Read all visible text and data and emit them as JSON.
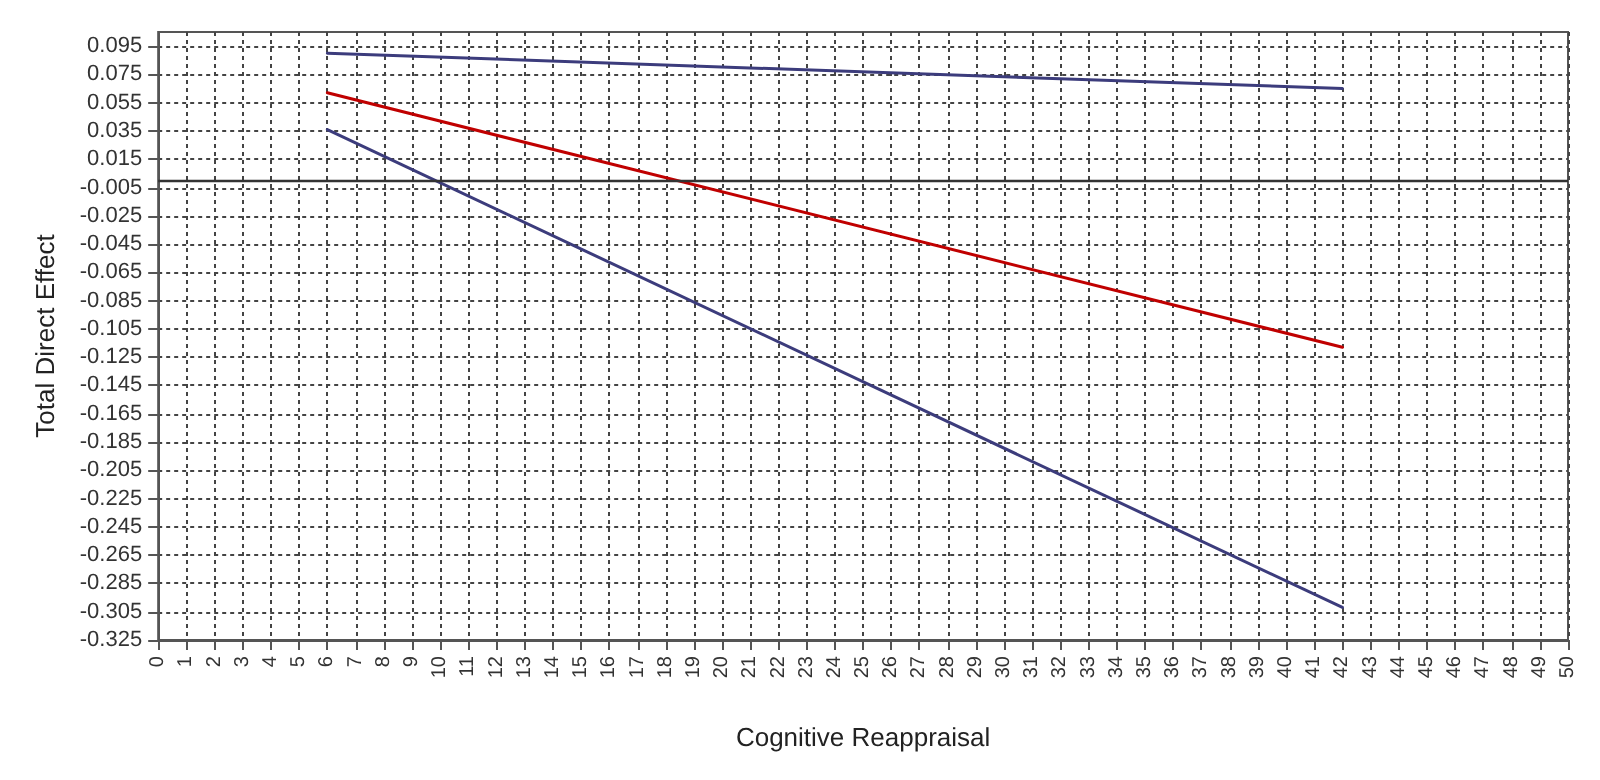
{
  "chart_data": {
    "type": "line",
    "xlabel": "Cognitive Reappraisal",
    "ylabel": "Total Direct Effect",
    "x": [
      6,
      42
    ],
    "series": [
      {
        "color": "#3c3c7c",
        "values": [
          0.09,
          0.065
        ]
      },
      {
        "color": "#c00000",
        "values": [
          0.062,
          -0.118
        ]
      },
      {
        "color": "#3c3c7c",
        "values": [
          0.036,
          -0.302
        ]
      }
    ],
    "xlim": [
      0,
      50
    ],
    "xticks": [
      0,
      1,
      2,
      3,
      4,
      5,
      6,
      7,
      8,
      9,
      10,
      11,
      12,
      13,
      14,
      15,
      16,
      17,
      18,
      19,
      20,
      21,
      22,
      23,
      24,
      25,
      26,
      27,
      28,
      29,
      30,
      31,
      32,
      33,
      34,
      35,
      36,
      37,
      38,
      39,
      40,
      41,
      42,
      43,
      44,
      45,
      46,
      47,
      48,
      49,
      50
    ],
    "ylim": [
      -0.325,
      0.105
    ],
    "yticks": [
      0.095,
      0.075,
      0.055,
      0.035,
      0.015,
      -0.005,
      -0.025,
      -0.045,
      -0.065,
      -0.085,
      -0.105,
      -0.125,
      -0.145,
      -0.165,
      -0.185,
      -0.205,
      -0.225,
      -0.245,
      -0.265,
      -0.285,
      -0.305,
      -0.325
    ],
    "ref_lines": [
      {
        "axis": "y",
        "value": 0,
        "color": "#333333",
        "line_style": "solid"
      }
    ],
    "grid": true,
    "marker": "none",
    "line_style": "solid"
  }
}
